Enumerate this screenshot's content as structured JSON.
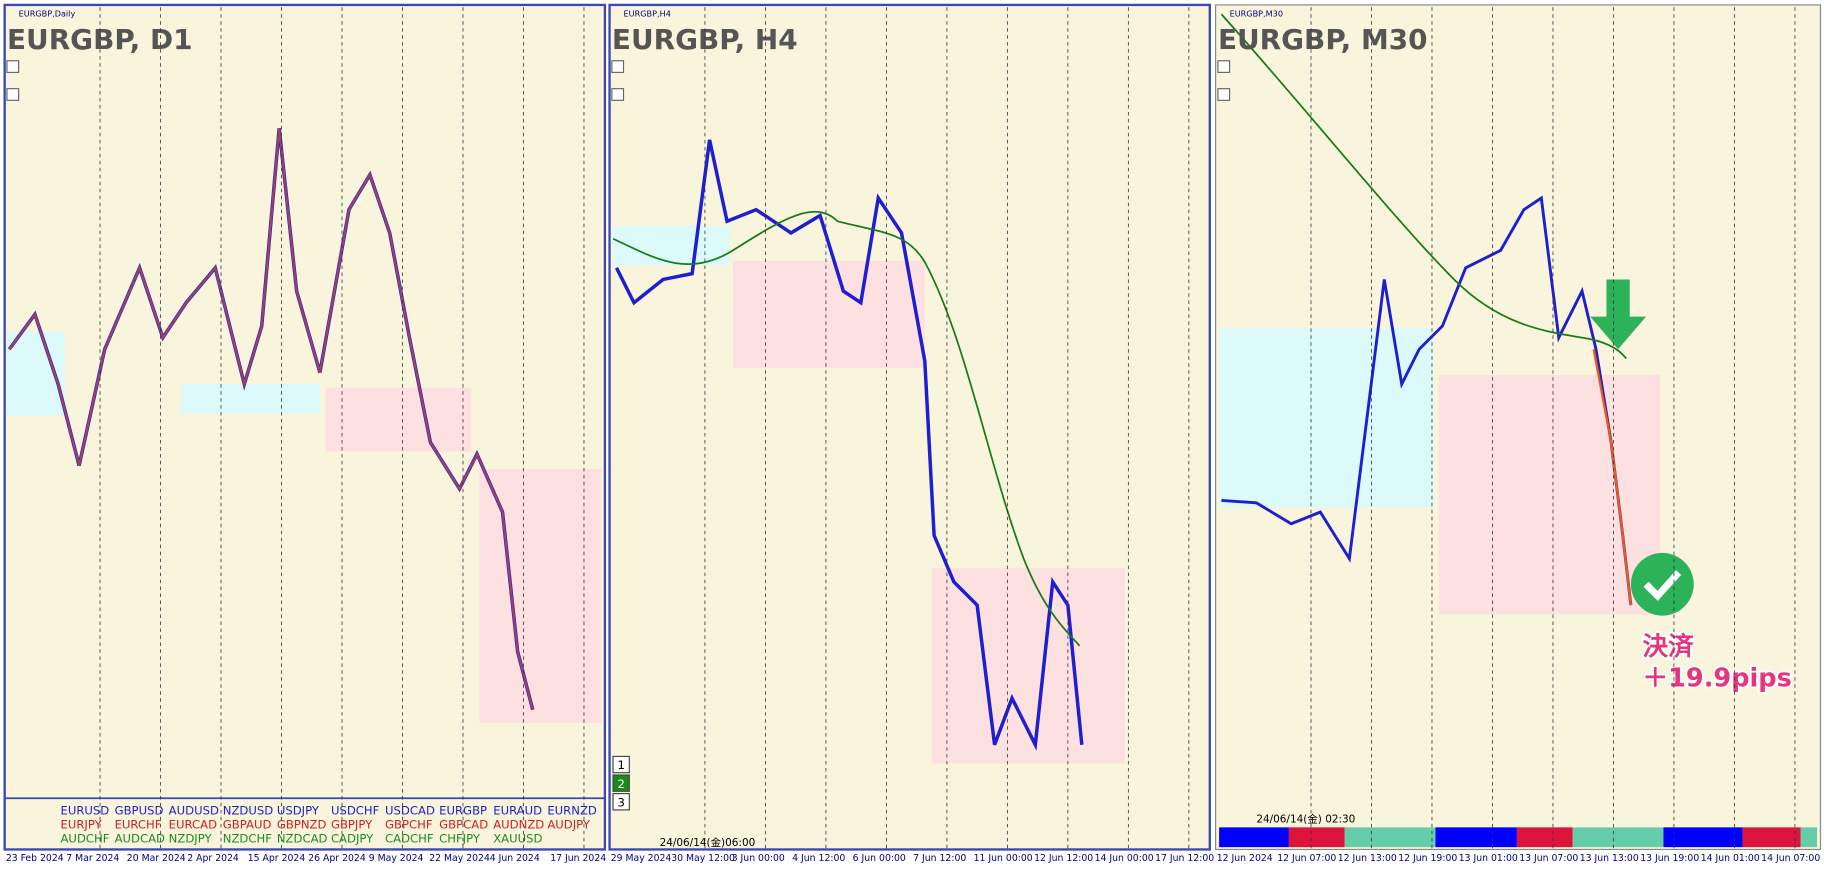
{
  "panels": [
    {
      "tab": "EURGBP,Daily",
      "title": "EURGBP, D1",
      "dates": [
        "23 Feb 2024",
        "7 Mar 2024",
        "20 Mar 2024",
        "2 Apr 2024",
        "15 Apr 2024",
        "26 Apr 2024",
        "9 May 2024",
        "22 May 2024",
        "4 Jun 2024",
        "17 Jun 2024"
      ]
    },
    {
      "tab": "EURGBP,H4",
      "title": "EURGBP, H4",
      "dates": [
        "29 May 2024",
        "30 May 12:00",
        "3 Jun 00:00",
        "4 Jun 12:00",
        "6 Jun 00:00",
        "7 Jun 12:00",
        "11 Jun 00:00",
        "12 Jun 12:00",
        "14 Jun 00:00",
        "17 Jun 12:00"
      ]
    },
    {
      "tab": "EURGBP,M30",
      "title": "EURGBP, M30",
      "dates": [
        "12 Jun 2024",
        "12 Jun 07:00",
        "12 Jun 13:00",
        "12 Jun 19:00",
        "13 Jun 01:00",
        "13 Jun 07:00",
        "13 Jun 13:00",
        "13 Jun 19:00",
        "14 Jun 01:00",
        "14 Jun 07:00"
      ]
    }
  ],
  "currency_grid": [
    [
      "EURUSD",
      "GBPUSD",
      "AUDUSD",
      "NZDUSD",
      "USDJPY",
      "USDCHF",
      "USDCAD",
      "EURGBP",
      "EURAUD",
      "EURNZD"
    ],
    [
      "EURJPY",
      "EURCHF",
      "EURCAD",
      "GBPAUD",
      "GBPNZD",
      "GBPJPY",
      "GBPCHF",
      "GBPCAD",
      "AUDNZD",
      "AUDJPY"
    ],
    [
      "AUDCHF",
      "AUDCAD",
      "NZDJPY",
      "NZDCHF",
      "NZDCAD",
      "CADJPY",
      "CADCHF",
      "CHFJPY",
      "XAUUSD"
    ]
  ],
  "h4_buttons": [
    "1",
    "2",
    "3"
  ],
  "h4_timestamp": "24/06/14(金)06:00",
  "m30_timestamp": "24/06/14(金) 02:30",
  "annotation": {
    "label": "決済",
    "pips": "＋19.9pips"
  }
}
